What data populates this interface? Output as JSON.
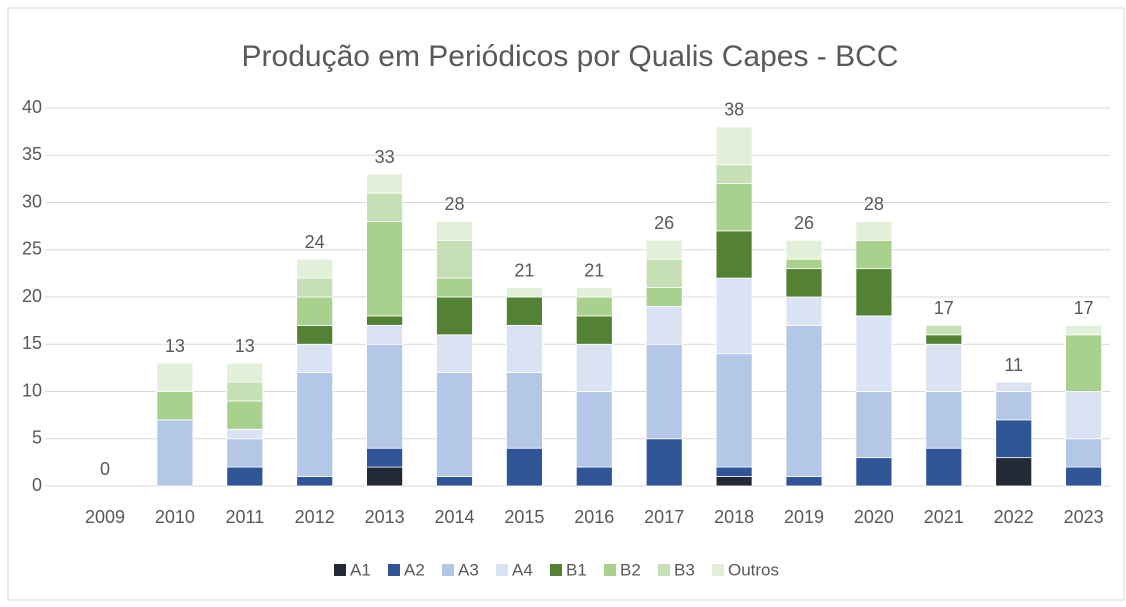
{
  "chart_data": {
    "type": "stacked_bar",
    "title": "Produção em Periódicos por Qualis Capes - BCC",
    "categories": [
      "2009",
      "2010",
      "2011",
      "2012",
      "2013",
      "2014",
      "2015",
      "2016",
      "2017",
      "2018",
      "2019",
      "2020",
      "2021",
      "2022",
      "2023"
    ],
    "series": [
      {
        "name": "A1",
        "color": "#222a35",
        "values": [
          0,
          0,
          0,
          0,
          2,
          0,
          0,
          0,
          0,
          1,
          0,
          0,
          0,
          3,
          0
        ]
      },
      {
        "name": "A2",
        "color": "#2f5597",
        "values": [
          0,
          0,
          2,
          1,
          2,
          1,
          4,
          2,
          5,
          1,
          1,
          3,
          4,
          4,
          2
        ]
      },
      {
        "name": "A3",
        "color": "#b4c7e7",
        "values": [
          0,
          7,
          3,
          11,
          11,
          11,
          8,
          8,
          10,
          12,
          16,
          7,
          6,
          3,
          3
        ]
      },
      {
        "name": "A4",
        "color": "#dae3f3",
        "values": [
          0,
          0,
          1,
          3,
          2,
          4,
          5,
          5,
          4,
          8,
          3,
          8,
          5,
          1,
          5
        ]
      },
      {
        "name": "B1",
        "color": "#548235",
        "values": [
          0,
          0,
          0,
          2,
          1,
          4,
          3,
          3,
          0,
          5,
          3,
          5,
          1,
          0,
          0
        ]
      },
      {
        "name": "B2",
        "color": "#a9d18e",
        "values": [
          0,
          3,
          3,
          3,
          10,
          2,
          0,
          2,
          2,
          5,
          1,
          3,
          0,
          0,
          6
        ]
      },
      {
        "name": "B3",
        "color": "#c5e0b4",
        "values": [
          0,
          0,
          2,
          2,
          3,
          4,
          0,
          0,
          3,
          2,
          0,
          0,
          1,
          0,
          0
        ]
      },
      {
        "name": "Outros",
        "color": "#e2f0d9",
        "values": [
          0,
          3,
          2,
          2,
          2,
          2,
          1,
          1,
          2,
          4,
          2,
          2,
          0,
          0,
          1
        ]
      }
    ],
    "totals": [
      0,
      13,
      13,
      24,
      33,
      28,
      21,
      21,
      26,
      38,
      26,
      28,
      17,
      11,
      17
    ],
    "ylim": [
      0,
      40
    ],
    "yticks": [
      0,
      5,
      10,
      15,
      20,
      25,
      30,
      35,
      40
    ],
    "grid": true,
    "legend": "bottom"
  }
}
